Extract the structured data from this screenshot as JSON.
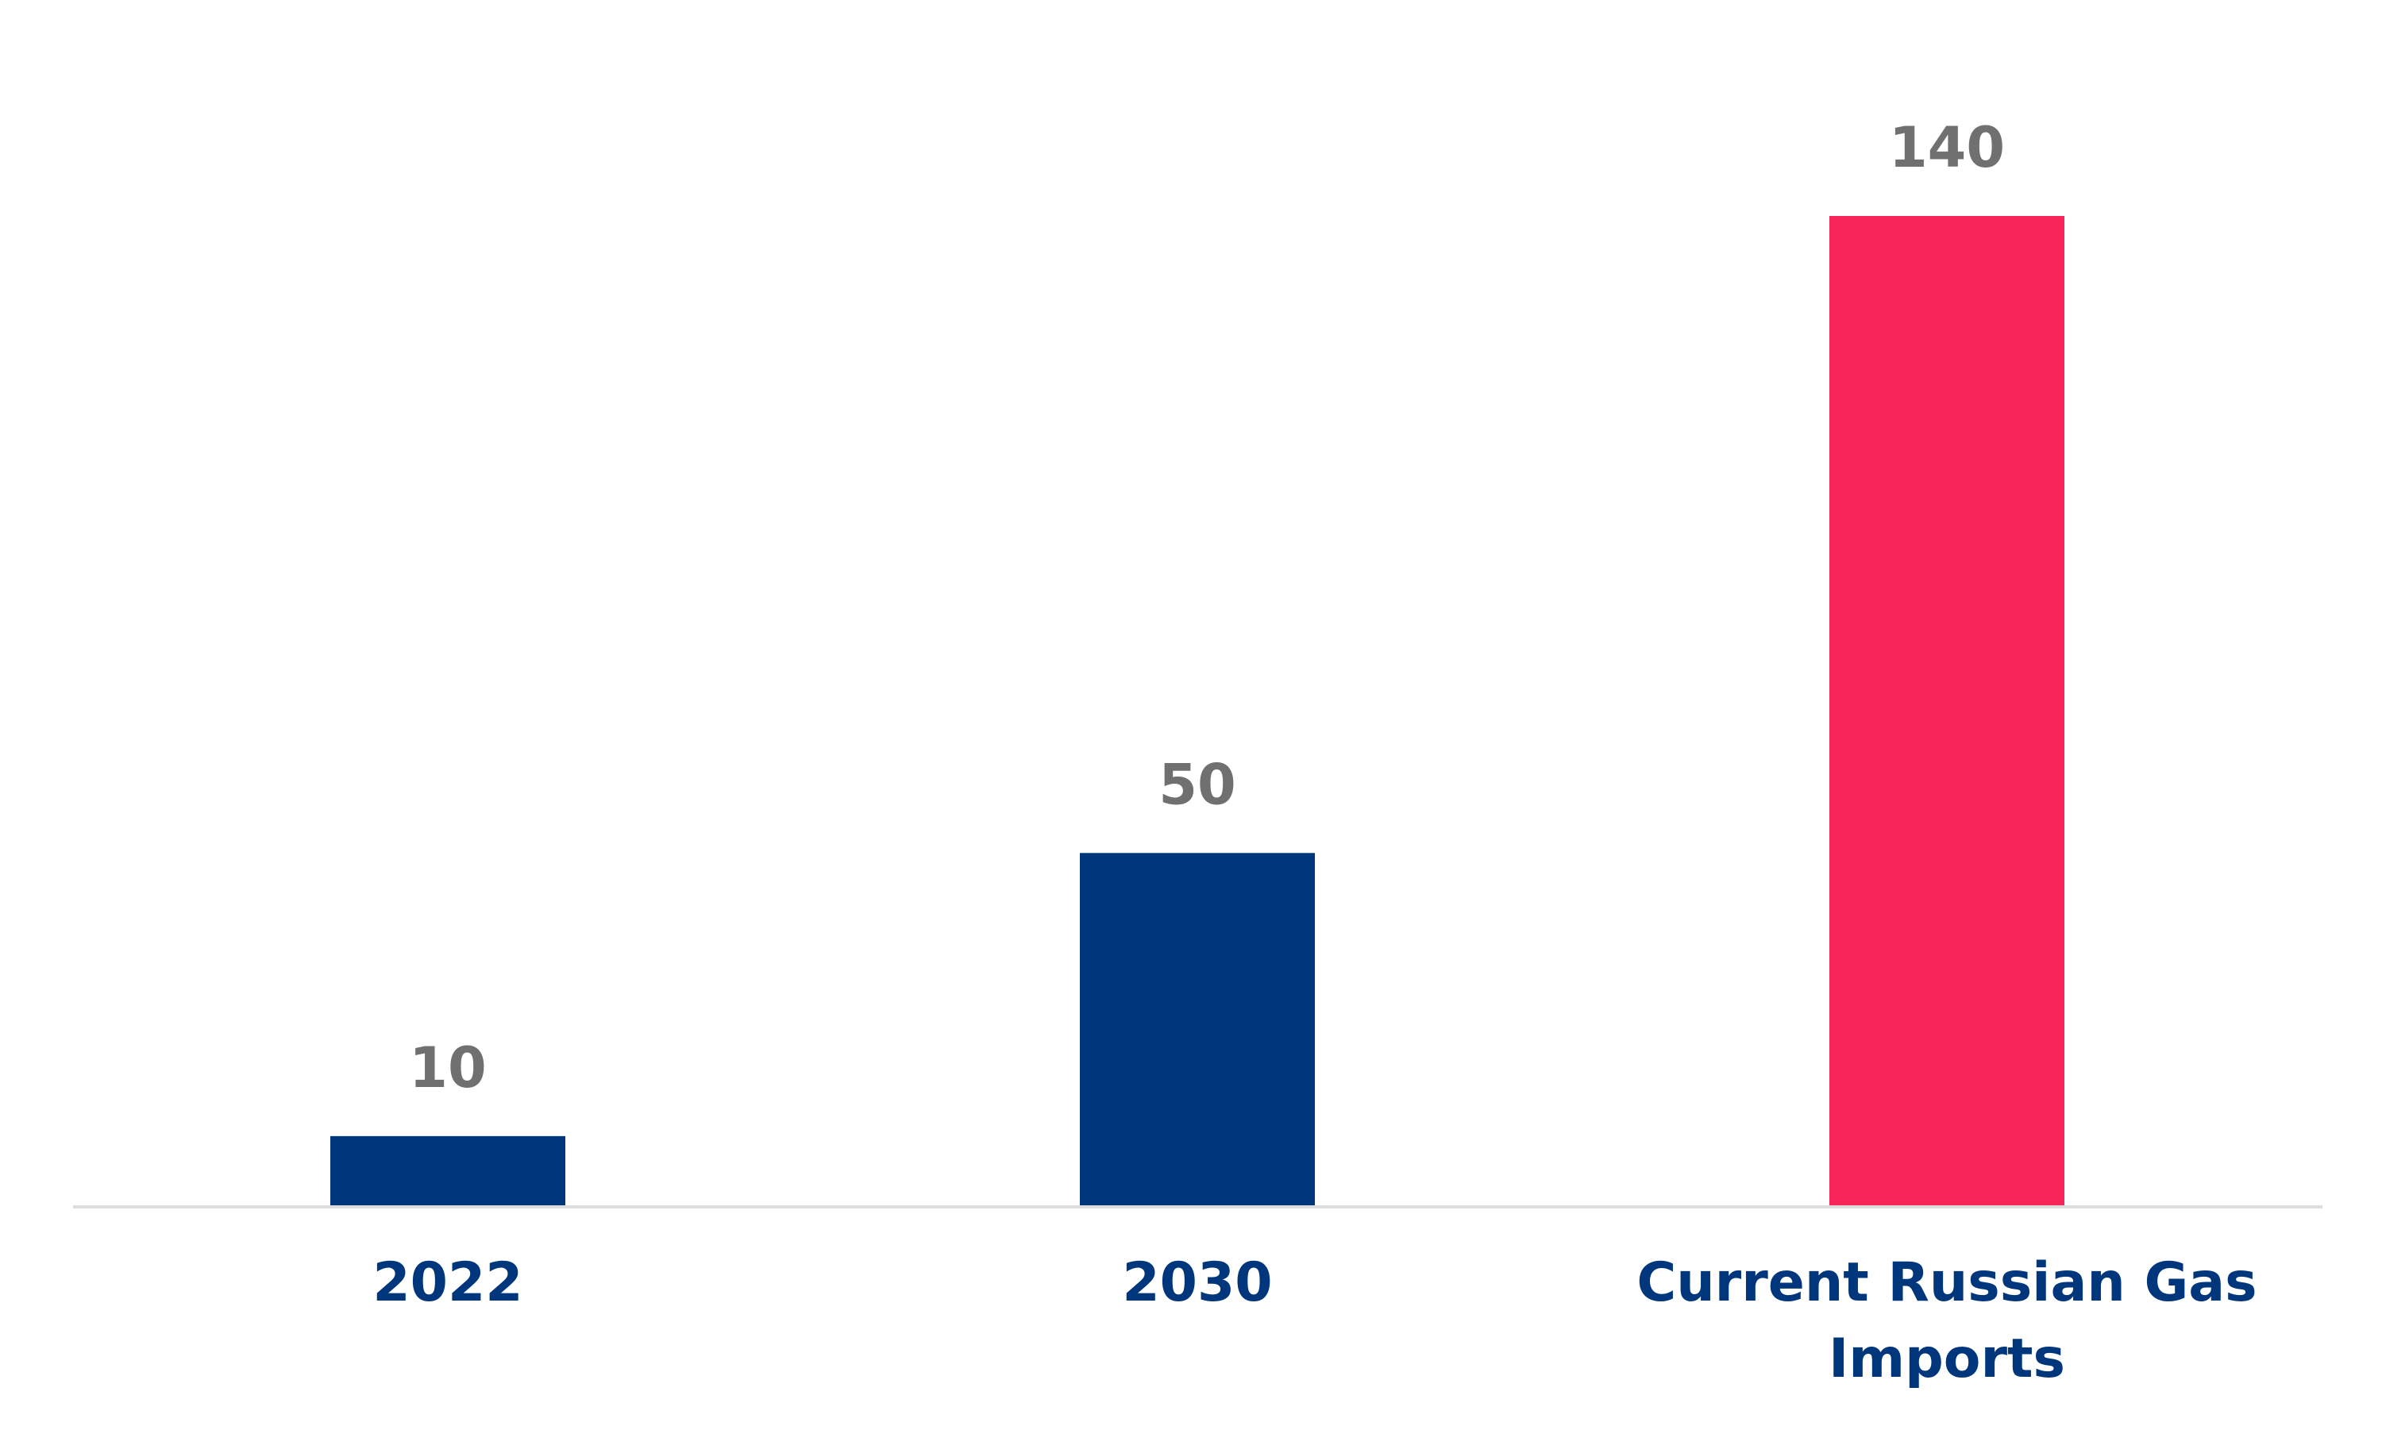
{
  "chart_data": {
    "type": "bar",
    "categories": [
      [
        "2022"
      ],
      [
        "2030"
      ],
      [
        "Current Russian Gas",
        "Imports"
      ]
    ],
    "values": [
      10,
      50,
      140
    ],
    "value_labels": [
      "10",
      "50",
      "140"
    ],
    "bar_colors": [
      "#00367c",
      "#00367c",
      "#f7255a"
    ],
    "label_color": "#707070",
    "category_color": "#00367c",
    "axis_color": "#dcdcdc",
    "ylim": [
      0,
      140
    ],
    "grid": false,
    "legend": "none"
  }
}
